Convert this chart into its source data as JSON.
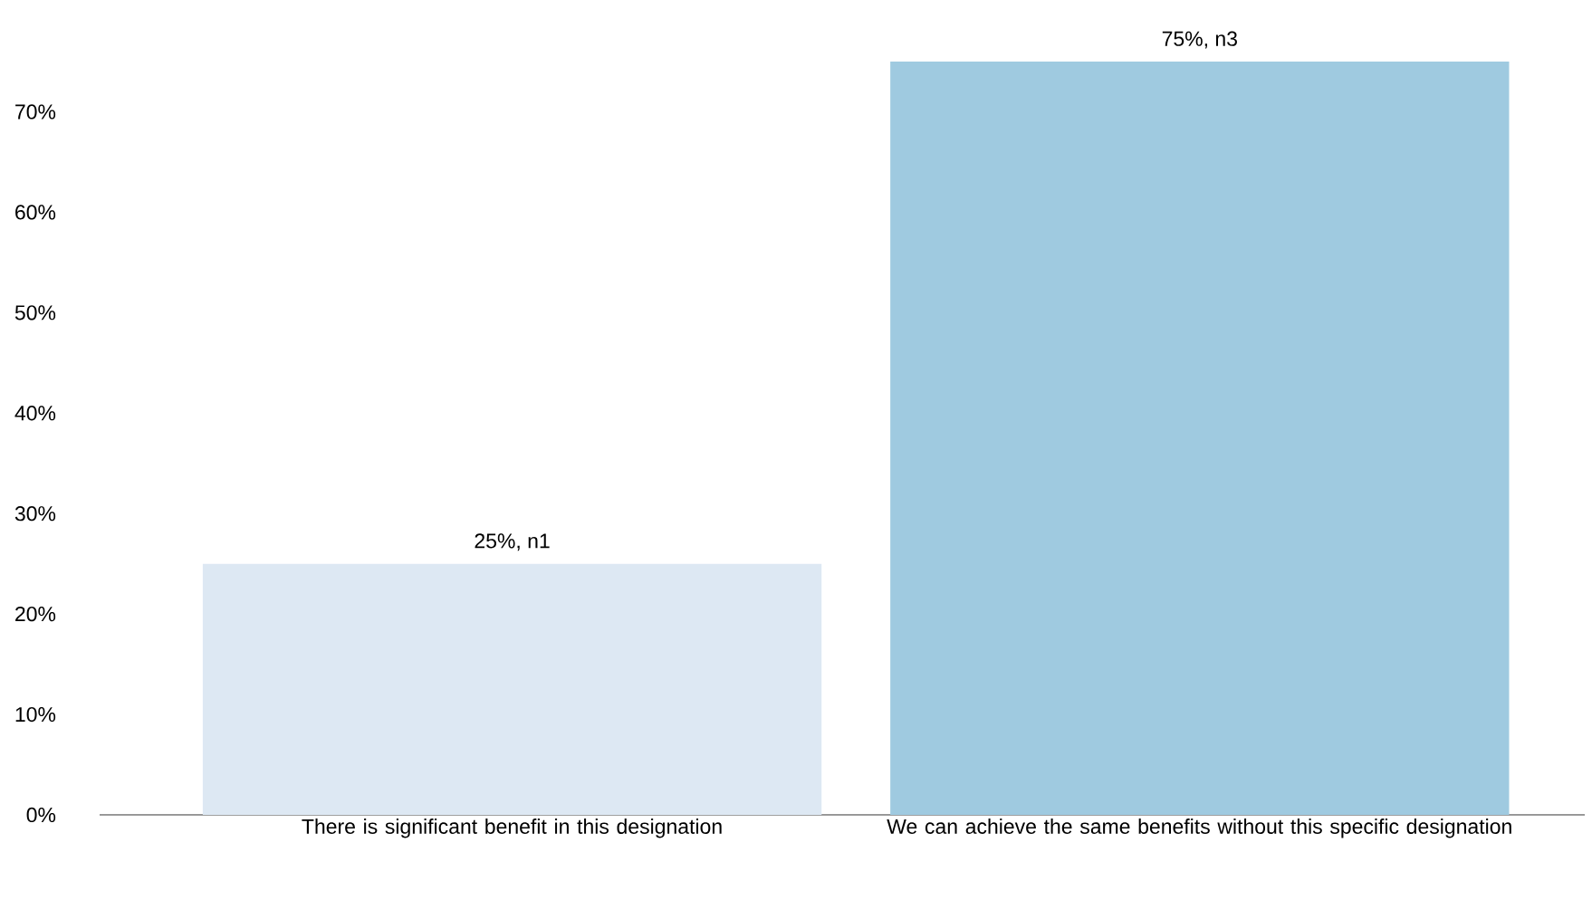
{
  "chart_data": {
    "type": "bar",
    "categories": [
      "There is significant benefit in this designation",
      "We can achieve the same benefits without this specific designation"
    ],
    "values": [
      25,
      75
    ],
    "colors": [
      "#dde8f3",
      "#9fcae0"
    ],
    "value_labels": [
      "25%, n1",
      "75%, n3"
    ],
    "ylim": [
      0,
      75
    ],
    "yticks": [
      {
        "value": 0,
        "label": "0%"
      },
      {
        "value": 10,
        "label": "10%"
      },
      {
        "value": 20,
        "label": "20%"
      },
      {
        "value": 30,
        "label": "30%"
      },
      {
        "value": 40,
        "label": "40%"
      },
      {
        "value": 50,
        "label": "50%"
      },
      {
        "value": 60,
        "label": "60%"
      },
      {
        "value": 70,
        "label": "70%"
      }
    ]
  }
}
